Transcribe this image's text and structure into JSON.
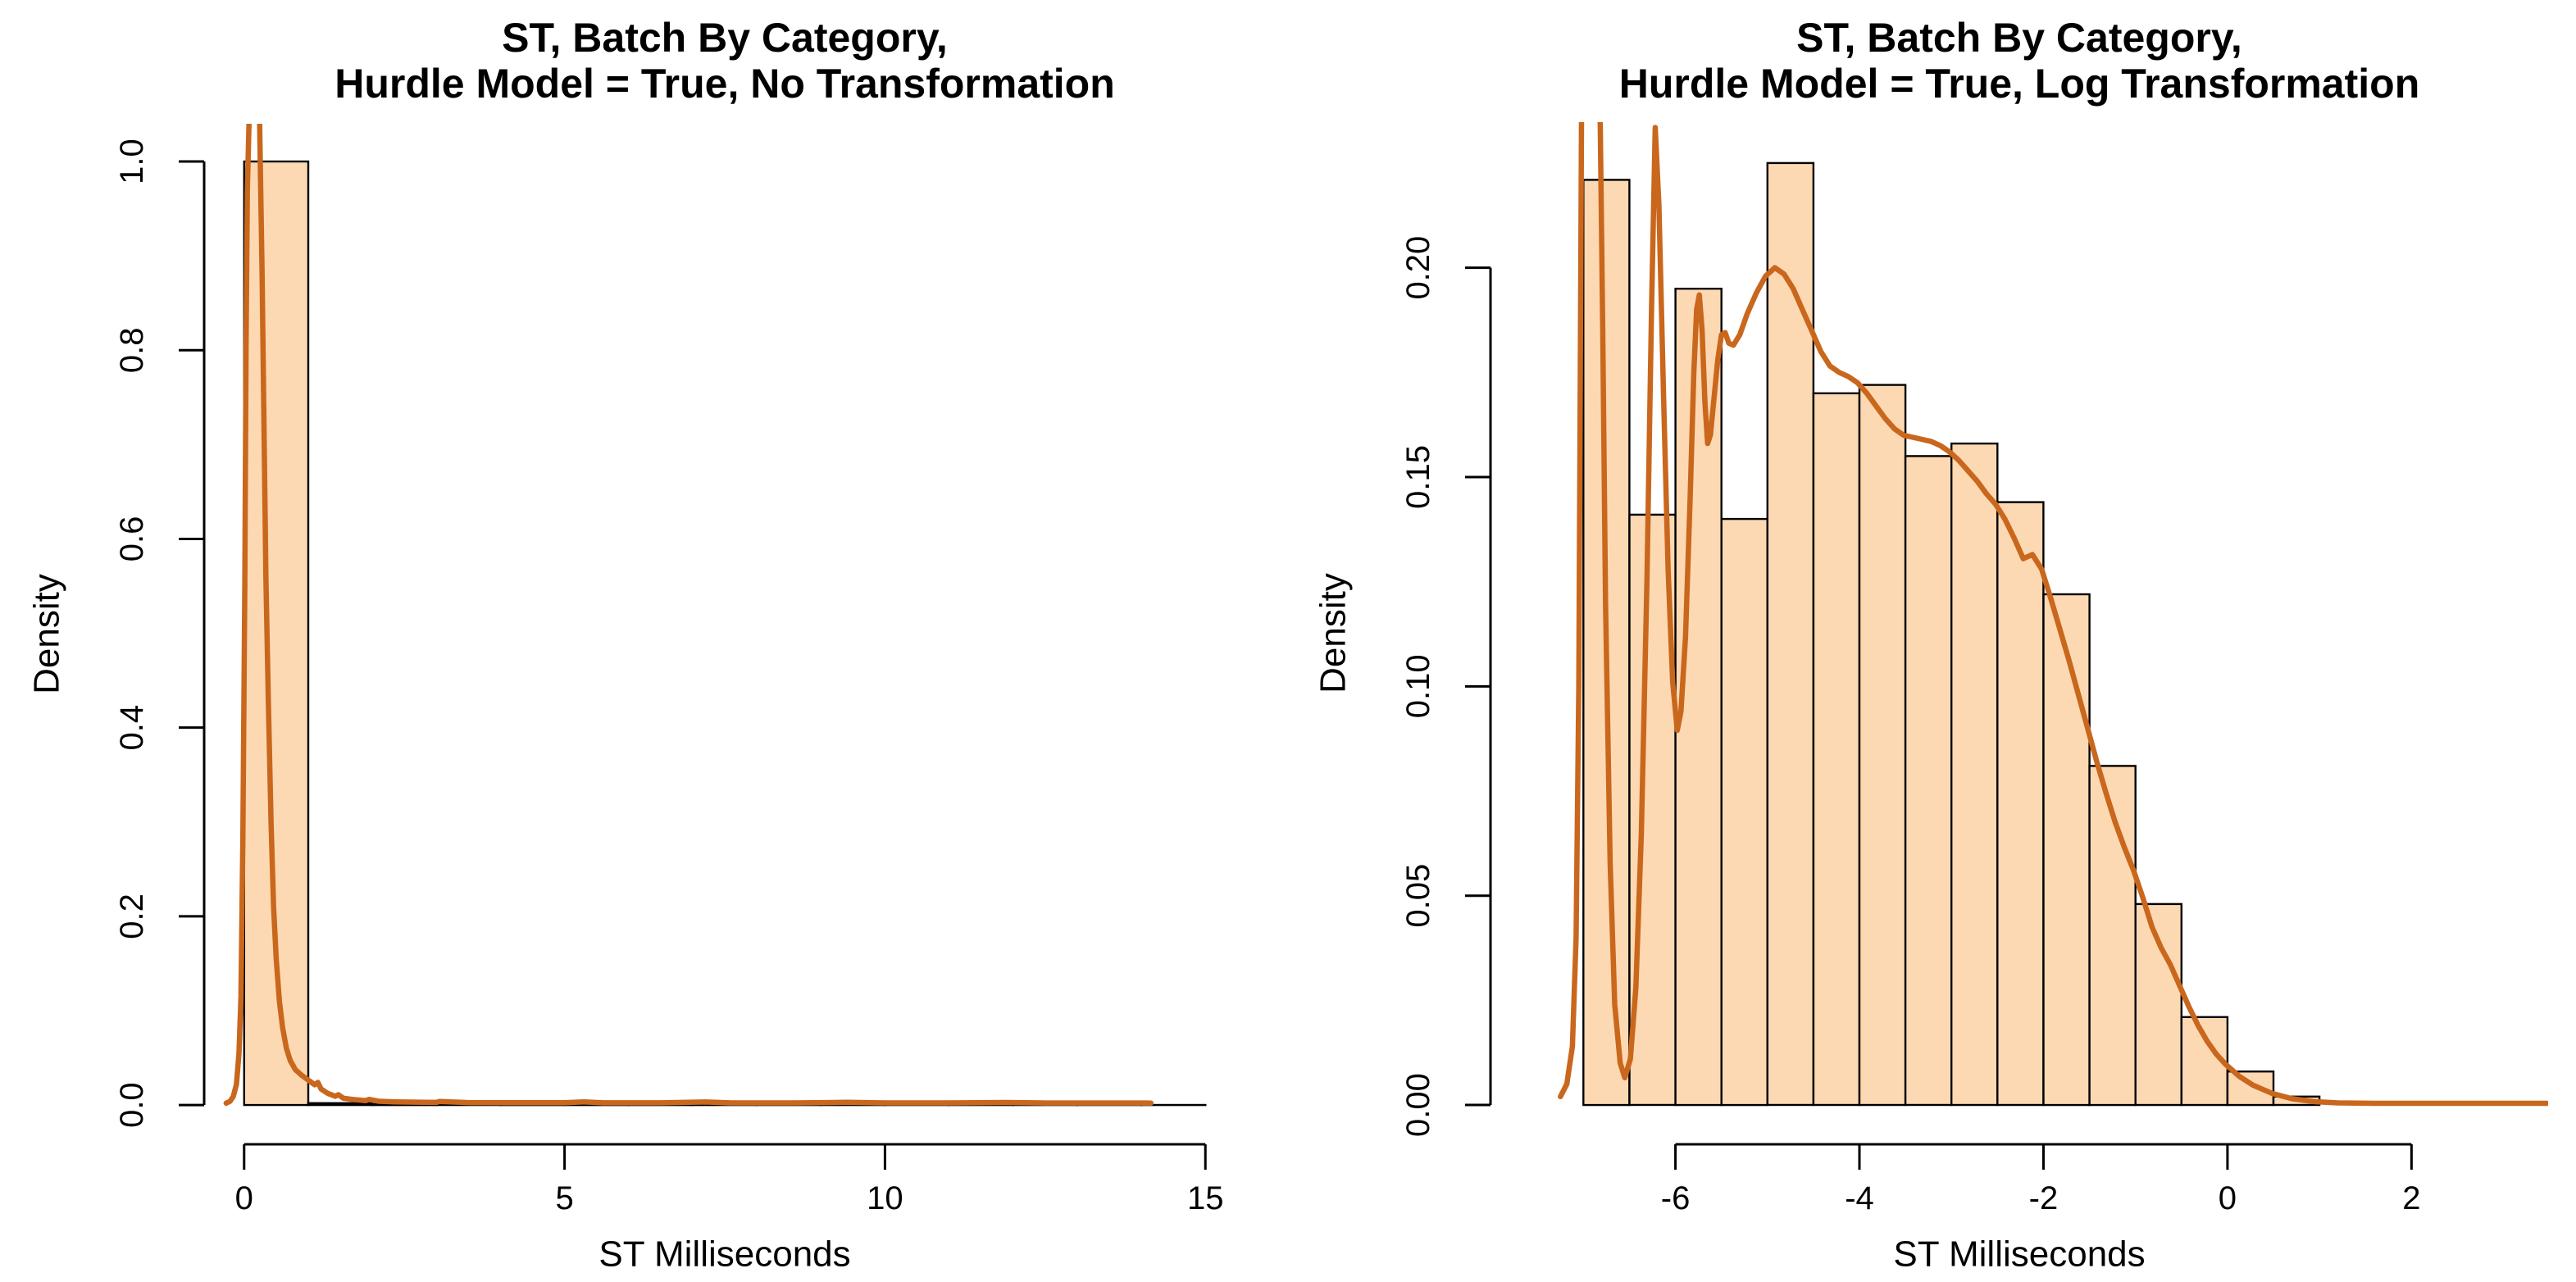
{
  "figure": {
    "background": "#FFFFFF",
    "description": "Two side-by-side R base-graphics histograms with kernel density overlay curves"
  },
  "colors": {
    "bar_fill": "#FDD9B3",
    "bar_border": "#000000",
    "curve": "#C9671D",
    "axis": "#000000",
    "text": "#000000"
  },
  "chart_data": [
    {
      "type": "histogram+density",
      "title_line1": "ST, Batch By Category,",
      "title_line2": "Hurdle Model = True, No Transformation",
      "xlabel": "ST Milliseconds",
      "ylabel": "Density",
      "x_ticks": [
        0,
        5,
        10,
        15
      ],
      "x_tick_labels": [
        "0",
        "5",
        "10",
        "15"
      ],
      "y_ticks": [
        0,
        0.2,
        0.4,
        0.6,
        0.8,
        1.0
      ],
      "y_tick_labels": [
        "0.0",
        "0.2",
        "0.4",
        "0.6",
        "0.8",
        "1.0"
      ],
      "xlim": [
        0,
        15
      ],
      "ylim": [
        0,
        1.0
      ],
      "grid": false,
      "legend": "none",
      "bins": {
        "start": 0,
        "width": 1,
        "densities": [
          1.0,
          0.002,
          0.001,
          0.0006,
          0.0004,
          0.0003,
          0.0003,
          0.0002,
          0.0002,
          0.0002,
          0.0001,
          0.0001,
          0.0001,
          0.0001,
          0.0001
        ]
      },
      "density_curve": [
        [
          -0.28,
          0.002
        ],
        [
          -0.22,
          0.004
        ],
        [
          -0.17,
          0.009
        ],
        [
          -0.12,
          0.022
        ],
        [
          -0.08,
          0.055
        ],
        [
          -0.05,
          0.115
        ],
        [
          -0.02,
          0.28
        ],
        [
          0.01,
          0.55
        ],
        [
          0.03,
          0.8
        ],
        [
          0.05,
          0.97
        ],
        [
          0.08,
          1.05
        ],
        [
          0.24,
          1.05
        ],
        [
          0.28,
          0.88
        ],
        [
          0.31,
          0.72
        ],
        [
          0.34,
          0.56
        ],
        [
          0.38,
          0.42
        ],
        [
          0.42,
          0.3
        ],
        [
          0.46,
          0.21
        ],
        [
          0.5,
          0.155
        ],
        [
          0.55,
          0.11
        ],
        [
          0.6,
          0.082
        ],
        [
          0.66,
          0.06
        ],
        [
          0.72,
          0.047
        ],
        [
          0.8,
          0.0375
        ],
        [
          0.9,
          0.0315
        ],
        [
          1.0,
          0.0265
        ],
        [
          1.1,
          0.0215
        ],
        [
          1.15,
          0.024
        ],
        [
          1.2,
          0.017
        ],
        [
          1.3,
          0.0125
        ],
        [
          1.42,
          0.0093
        ],
        [
          1.47,
          0.011
        ],
        [
          1.55,
          0.0072
        ],
        [
          1.7,
          0.0058
        ],
        [
          1.9,
          0.0047
        ],
        [
          1.95,
          0.006
        ],
        [
          2.1,
          0.004
        ],
        [
          2.35,
          0.0034
        ],
        [
          2.6,
          0.0031
        ],
        [
          3.0,
          0.0028
        ],
        [
          3.05,
          0.0038
        ],
        [
          3.5,
          0.0026
        ],
        [
          4.2,
          0.0025
        ],
        [
          5.0,
          0.0025
        ],
        [
          5.3,
          0.0034
        ],
        [
          5.6,
          0.0024
        ],
        [
          6.5,
          0.0024
        ],
        [
          7.2,
          0.0032
        ],
        [
          7.6,
          0.0023
        ],
        [
          8.6,
          0.0023
        ],
        [
          9.4,
          0.0029
        ],
        [
          10.0,
          0.0023
        ],
        [
          11.0,
          0.0023
        ],
        [
          11.9,
          0.0027
        ],
        [
          12.5,
          0.0022
        ],
        [
          13.3,
          0.0022
        ],
        [
          13.9,
          0.0022
        ],
        [
          14.15,
          0.0021
        ]
      ]
    },
    {
      "type": "histogram+density",
      "title_line1": "ST, Batch By Category,",
      "title_line2": "Hurdle Model = True, Log Transformation",
      "xlabel": "ST Milliseconds",
      "ylabel": "Density",
      "x_ticks": [
        -6,
        -4,
        -2,
        0,
        2
      ],
      "x_tick_labels": [
        "-6",
        "-4",
        "-2",
        "0",
        "2"
      ],
      "y_ticks": [
        0,
        0.05,
        0.1,
        0.15,
        0.2
      ],
      "y_tick_labels": [
        "0.00",
        "0.05",
        "0.10",
        "0.15",
        "0.20"
      ],
      "xlim": [
        -7,
        3.3
      ],
      "ylim": [
        0,
        0.225
      ],
      "grid": false,
      "legend": "none",
      "bins": {
        "start": -7,
        "width": 0.5,
        "densities": [
          0.221,
          0.141,
          0.195,
          0.14,
          0.225,
          0.17,
          0.172,
          0.155,
          0.158,
          0.144,
          0.122,
          0.081,
          0.048,
          0.021,
          0.008,
          0.002
        ]
      },
      "density_curve": [
        [
          -7.25,
          0.002
        ],
        [
          -7.18,
          0.005
        ],
        [
          -7.12,
          0.014
        ],
        [
          -7.08,
          0.04
        ],
        [
          -7.05,
          0.1
        ],
        [
          -7.02,
          0.24
        ],
        [
          -6.82,
          0.24
        ],
        [
          -6.79,
          0.185
        ],
        [
          -6.76,
          0.12
        ],
        [
          -6.71,
          0.058
        ],
        [
          -6.66,
          0.024
        ],
        [
          -6.6,
          0.01
        ],
        [
          -6.55,
          0.0065
        ],
        [
          -6.49,
          0.011
        ],
        [
          -6.43,
          0.028
        ],
        [
          -6.37,
          0.065
        ],
        [
          -6.31,
          0.125
        ],
        [
          -6.26,
          0.19
        ],
        [
          -6.22,
          0.2335
        ],
        [
          -6.18,
          0.215
        ],
        [
          -6.13,
          0.17
        ],
        [
          -6.08,
          0.128
        ],
        [
          -6.03,
          0.101
        ],
        [
          -5.98,
          0.0895
        ],
        [
          -5.94,
          0.094
        ],
        [
          -5.89,
          0.112
        ],
        [
          -5.84,
          0.145
        ],
        [
          -5.8,
          0.175
        ],
        [
          -5.77,
          0.19
        ],
        [
          -5.74,
          0.1935
        ],
        [
          -5.71,
          0.185
        ],
        [
          -5.68,
          0.168
        ],
        [
          -5.65,
          0.158
        ],
        [
          -5.62,
          0.16
        ],
        [
          -5.58,
          0.169
        ],
        [
          -5.54,
          0.178
        ],
        [
          -5.5,
          0.184
        ],
        [
          -5.46,
          0.1845
        ],
        [
          -5.42,
          0.182
        ],
        [
          -5.37,
          0.1815
        ],
        [
          -5.3,
          0.184
        ],
        [
          -5.22,
          0.189
        ],
        [
          -5.12,
          0.194
        ],
        [
          -5.02,
          0.198
        ],
        [
          -4.92,
          0.2
        ],
        [
          -4.82,
          0.1985
        ],
        [
          -4.72,
          0.195
        ],
        [
          -4.62,
          0.19
        ],
        [
          -4.52,
          0.185
        ],
        [
          -4.42,
          0.18
        ],
        [
          -4.32,
          0.1765
        ],
        [
          -4.22,
          0.175
        ],
        [
          -4.12,
          0.174
        ],
        [
          -4.02,
          0.1725
        ],
        [
          -3.92,
          0.17
        ],
        [
          -3.82,
          0.167
        ],
        [
          -3.72,
          0.164
        ],
        [
          -3.62,
          0.1615
        ],
        [
          -3.52,
          0.16
        ],
        [
          -3.42,
          0.1595
        ],
        [
          -3.32,
          0.159
        ],
        [
          -3.22,
          0.1585
        ],
        [
          -3.12,
          0.1575
        ],
        [
          -3.02,
          0.156
        ],
        [
          -2.92,
          0.154
        ],
        [
          -2.82,
          0.1515
        ],
        [
          -2.72,
          0.149
        ],
        [
          -2.62,
          0.146
        ],
        [
          -2.52,
          0.1435
        ],
        [
          -2.42,
          0.14
        ],
        [
          -2.32,
          0.1355
        ],
        [
          -2.22,
          0.1305
        ],
        [
          -2.12,
          0.1315
        ],
        [
          -2.02,
          0.128
        ],
        [
          -1.92,
          0.121
        ],
        [
          -1.82,
          0.1135
        ],
        [
          -1.72,
          0.106
        ],
        [
          -1.62,
          0.098
        ],
        [
          -1.52,
          0.09
        ],
        [
          -1.42,
          0.082
        ],
        [
          -1.32,
          0.0745
        ],
        [
          -1.22,
          0.0675
        ],
        [
          -1.12,
          0.0615
        ],
        [
          -1.02,
          0.056
        ],
        [
          -0.92,
          0.0495
        ],
        [
          -0.82,
          0.0425
        ],
        [
          -0.72,
          0.0375
        ],
        [
          -0.62,
          0.0335
        ],
        [
          -0.52,
          0.0285
        ],
        [
          -0.42,
          0.0235
        ],
        [
          -0.32,
          0.019
        ],
        [
          -0.22,
          0.0152
        ],
        [
          -0.12,
          0.0121
        ],
        [
          -0.02,
          0.0097
        ],
        [
          0.13,
          0.0068
        ],
        [
          0.28,
          0.0047
        ],
        [
          0.48,
          0.0028
        ],
        [
          0.7,
          0.0015
        ],
        [
          0.95,
          0.0008
        ],
        [
          1.2,
          0.0005
        ],
        [
          1.6,
          0.0004
        ],
        [
          2.2,
          0.0004
        ],
        [
          3.0,
          0.0004
        ],
        [
          3.47,
          0.0004
        ]
      ]
    }
  ]
}
